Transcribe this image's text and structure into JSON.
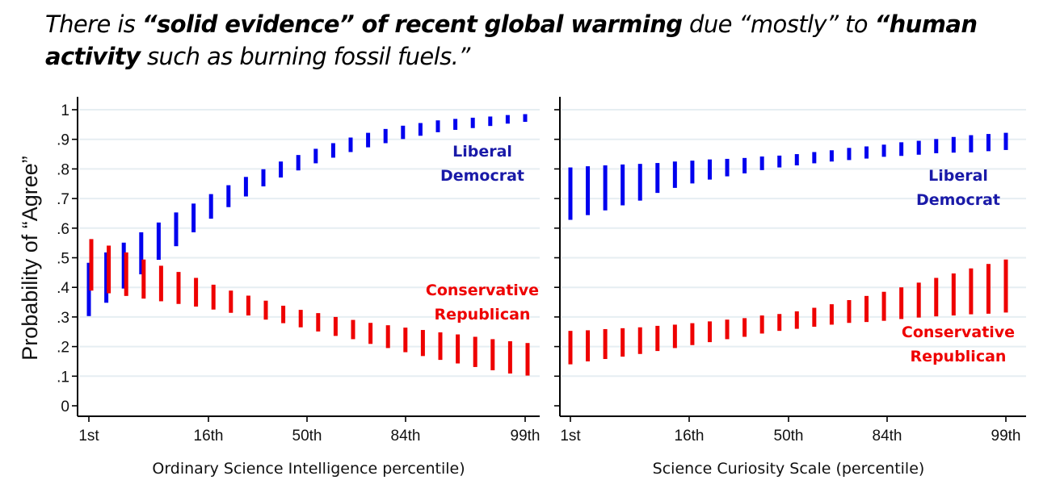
{
  "title": {
    "parts": [
      {
        "text": "There is ",
        "bold": false
      },
      {
        "text": "“solid evidence” of recent global warming",
        "bold": true
      },
      {
        "text": " due “mostly” to ",
        "bold": false
      },
      {
        "text": "“human",
        "bold": true
      }
    ],
    "parts_line2": [
      {
        "text": "activity",
        "bold": true
      },
      {
        "text": " such as burning fossil fuels.”",
        "bold": false
      }
    ]
  },
  "colors": {
    "liberal": "#0000ee",
    "conservative": "#ee0000",
    "liberal_label": "#1a1aa8",
    "conservative_label": "#ee0000",
    "grid": "#e6eef2"
  },
  "chart_data": [
    {
      "type": "errorbar",
      "panel": "left",
      "xlabel": "Ordinary Science Intelligence percentile)",
      "ylabel": "Probability of “Agree”",
      "ylim": [
        0,
        1
      ],
      "yticks": [
        "0",
        ".1",
        ".2",
        ".3",
        ".4",
        ".5",
        ".6",
        ".7",
        ".8",
        ".9",
        "1"
      ],
      "xticks": [
        "1st",
        "16th",
        "50th",
        "84th",
        "99th"
      ],
      "n_points": 26,
      "grid": true,
      "series": [
        {
          "name": "Liberal Democrat",
          "label_lines": [
            "Liberal",
            "Democrat"
          ],
          "label_position": "top-right",
          "upper": [
            0.483,
            0.518,
            0.551,
            0.586,
            0.619,
            0.653,
            0.683,
            0.715,
            0.745,
            0.773,
            0.799,
            0.825,
            0.847,
            0.868,
            0.887,
            0.906,
            0.922,
            0.935,
            0.946,
            0.955,
            0.964,
            0.969,
            0.973,
            0.977,
            0.982,
            0.985
          ],
          "lower": [
            0.303,
            0.348,
            0.396,
            0.444,
            0.493,
            0.539,
            0.586,
            0.632,
            0.671,
            0.707,
            0.741,
            0.771,
            0.795,
            0.819,
            0.838,
            0.857,
            0.873,
            0.887,
            0.901,
            0.912,
            0.924,
            0.932,
            0.938,
            0.945,
            0.953,
            0.959
          ]
        },
        {
          "name": "Conservative Republican",
          "label_lines": [
            "Conservative",
            "Republican"
          ],
          "label_position": "middle-right",
          "upper": [
            0.563,
            0.541,
            0.518,
            0.494,
            0.473,
            0.452,
            0.432,
            0.409,
            0.389,
            0.372,
            0.355,
            0.338,
            0.324,
            0.313,
            0.3,
            0.29,
            0.28,
            0.272,
            0.264,
            0.256,
            0.248,
            0.241,
            0.233,
            0.225,
            0.218,
            0.212
          ],
          "lower": [
            0.389,
            0.38,
            0.371,
            0.362,
            0.353,
            0.344,
            0.335,
            0.325,
            0.314,
            0.305,
            0.291,
            0.279,
            0.265,
            0.251,
            0.236,
            0.225,
            0.209,
            0.195,
            0.181,
            0.168,
            0.155,
            0.143,
            0.131,
            0.12,
            0.109,
            0.102
          ]
        }
      ]
    },
    {
      "type": "errorbar",
      "panel": "right",
      "xlabel": "Science Curiosity Scale (percentile)",
      "ylabel": "",
      "ylim": [
        0,
        1
      ],
      "yticks": [
        "0",
        ".1",
        ".2",
        ".3",
        ".4",
        ".5",
        ".6",
        ".7",
        ".8",
        ".9",
        "1"
      ],
      "xticks": [
        "1st",
        "16th",
        "50th",
        "84th",
        "99th"
      ],
      "n_points": 26,
      "grid": true,
      "series": [
        {
          "name": "Liberal Democrat",
          "label_lines": [
            "Liberal",
            "Democrat"
          ],
          "label_position": "top-right",
          "upper": [
            0.805,
            0.809,
            0.812,
            0.815,
            0.817,
            0.82,
            0.825,
            0.828,
            0.832,
            0.834,
            0.837,
            0.842,
            0.845,
            0.85,
            0.857,
            0.863,
            0.871,
            0.876,
            0.882,
            0.89,
            0.895,
            0.901,
            0.908,
            0.914,
            0.918,
            0.922
          ],
          "lower": [
            0.628,
            0.644,
            0.66,
            0.677,
            0.693,
            0.719,
            0.736,
            0.751,
            0.764,
            0.775,
            0.785,
            0.796,
            0.805,
            0.812,
            0.819,
            0.825,
            0.83,
            0.835,
            0.841,
            0.844,
            0.848,
            0.853,
            0.855,
            0.856,
            0.86,
            0.864
          ]
        },
        {
          "name": "Conservative Republican",
          "label_lines": [
            "Conservative",
            "Republican"
          ],
          "label_position": "bottom-right",
          "upper": [
            0.253,
            0.255,
            0.259,
            0.262,
            0.265,
            0.27,
            0.274,
            0.279,
            0.285,
            0.291,
            0.296,
            0.305,
            0.31,
            0.319,
            0.331,
            0.343,
            0.357,
            0.371,
            0.385,
            0.4,
            0.416,
            0.432,
            0.447,
            0.464,
            0.479,
            0.494
          ],
          "lower": [
            0.14,
            0.15,
            0.158,
            0.166,
            0.175,
            0.185,
            0.195,
            0.205,
            0.215,
            0.225,
            0.233,
            0.244,
            0.253,
            0.26,
            0.267,
            0.274,
            0.28,
            0.283,
            0.287,
            0.293,
            0.298,
            0.302,
            0.305,
            0.309,
            0.311,
            0.315
          ]
        }
      ]
    }
  ]
}
